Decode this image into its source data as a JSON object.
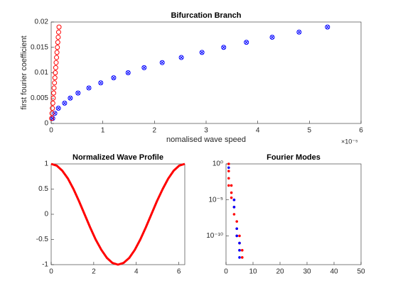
{
  "chart_data": [
    {
      "type": "scatter",
      "title": "Bifurcation Branch",
      "x_label": "nomalised wave speed",
      "y_label": "first fourier coefficient",
      "x_multiplier_label": "×10⁻⁵",
      "xlim": [
        0,
        6
      ],
      "xticks": [
        0,
        1,
        2,
        3,
        4,
        5,
        6
      ],
      "ylim": [
        0,
        0.02
      ],
      "yticks": [
        0,
        0.005,
        0.01,
        0.015,
        0.02
      ],
      "yscale": "linear",
      "series": [
        {
          "color": "#0000ff",
          "marker": "circle-x",
          "x": [
            0.03,
            0.07,
            0.14,
            0.26,
            0.37,
            0.52,
            0.73,
            0.96,
            1.21,
            1.49,
            1.8,
            2.15,
            2.52,
            2.92,
            3.34,
            3.78,
            4.28,
            4.8,
            5.35
          ],
          "values": [
            0.001,
            0.002,
            0.003,
            0.004,
            0.005,
            0.006,
            0.007,
            0.008,
            0.009,
            0.01,
            0.011,
            0.012,
            0.013,
            0.014,
            0.015,
            0.016,
            0.017,
            0.018,
            0.019
          ]
        },
        {
          "color": "#ff0000",
          "marker": "circle",
          "x": [
            0.008,
            0.016,
            0.024,
            0.032,
            0.04,
            0.048,
            0.056,
            0.064,
            0.072,
            0.08,
            0.088,
            0.096,
            0.104,
            0.112,
            0.12,
            0.128,
            0.136,
            0.144,
            0.152
          ],
          "values": [
            0.001,
            0.002,
            0.003,
            0.004,
            0.005,
            0.006,
            0.007,
            0.008,
            0.009,
            0.01,
            0.011,
            0.012,
            0.013,
            0.014,
            0.015,
            0.016,
            0.017,
            0.018,
            0.019
          ]
        }
      ]
    },
    {
      "type": "line",
      "title": "Normalized Wave Profile",
      "xlim": [
        0,
        6.28
      ],
      "xticks": [
        0,
        2,
        4,
        6
      ],
      "ylim": [
        -1,
        1
      ],
      "yticks": [
        -1,
        -0.5,
        0,
        0.5,
        1
      ],
      "yscale": "linear",
      "series": [
        {
          "color": "#ff0000",
          "x": [
            0,
            0.26,
            0.52,
            0.79,
            1.05,
            1.31,
            1.57,
            1.83,
            2.09,
            2.36,
            2.62,
            2.88,
            3.14,
            3.4,
            3.67,
            3.93,
            4.19,
            4.45,
            4.71,
            4.97,
            5.24,
            5.5,
            5.76,
            6.02,
            6.28
          ],
          "values": [
            1,
            0.966,
            0.866,
            0.707,
            0.5,
            0.259,
            0,
            -0.259,
            -0.5,
            -0.707,
            -0.866,
            -0.966,
            -1,
            -0.966,
            -0.866,
            -0.707,
            -0.5,
            -0.259,
            0,
            0.259,
            0.5,
            0.707,
            0.866,
            0.966,
            1
          ]
        }
      ]
    },
    {
      "type": "scatter",
      "title": "Fourier Modes",
      "xlim": [
        0,
        50
      ],
      "xticks": [
        0,
        10,
        20,
        30,
        40,
        50
      ],
      "ylim": [
        1e-14,
        1
      ],
      "yticks": [
        {
          "value": 1e-10,
          "label": "10⁻¹⁰"
        },
        {
          "value": 1e-05,
          "label": "10⁻⁵"
        },
        {
          "value": 1,
          "label": "10⁰"
        }
      ],
      "yscale": "log",
      "series": [
        {
          "color": "#ff0000",
          "marker": "dot",
          "x": [
            1,
            1,
            1,
            1,
            2,
            2,
            2,
            3,
            3,
            3,
            4,
            4,
            4,
            5,
            5,
            5,
            6,
            6
          ],
          "values": [
            1,
            0.1,
            0.01,
            0.001,
            0.001,
            0.0001,
            2e-05,
            1e-05,
            1e-06,
            1e-07,
            1e-08,
            1e-09,
            1e-10,
            1e-10,
            1e-11,
            1e-12,
            1e-12,
            1e-13
          ]
        },
        {
          "color": "#0000ff",
          "marker": "dot",
          "x": [
            1,
            3,
            3,
            4,
            4,
            5,
            5,
            5
          ],
          "values": [
            0.3,
            1e-05,
            1e-06,
            1e-09,
            1e-10,
            1e-11,
            1e-12,
            1e-13
          ]
        }
      ]
    }
  ]
}
